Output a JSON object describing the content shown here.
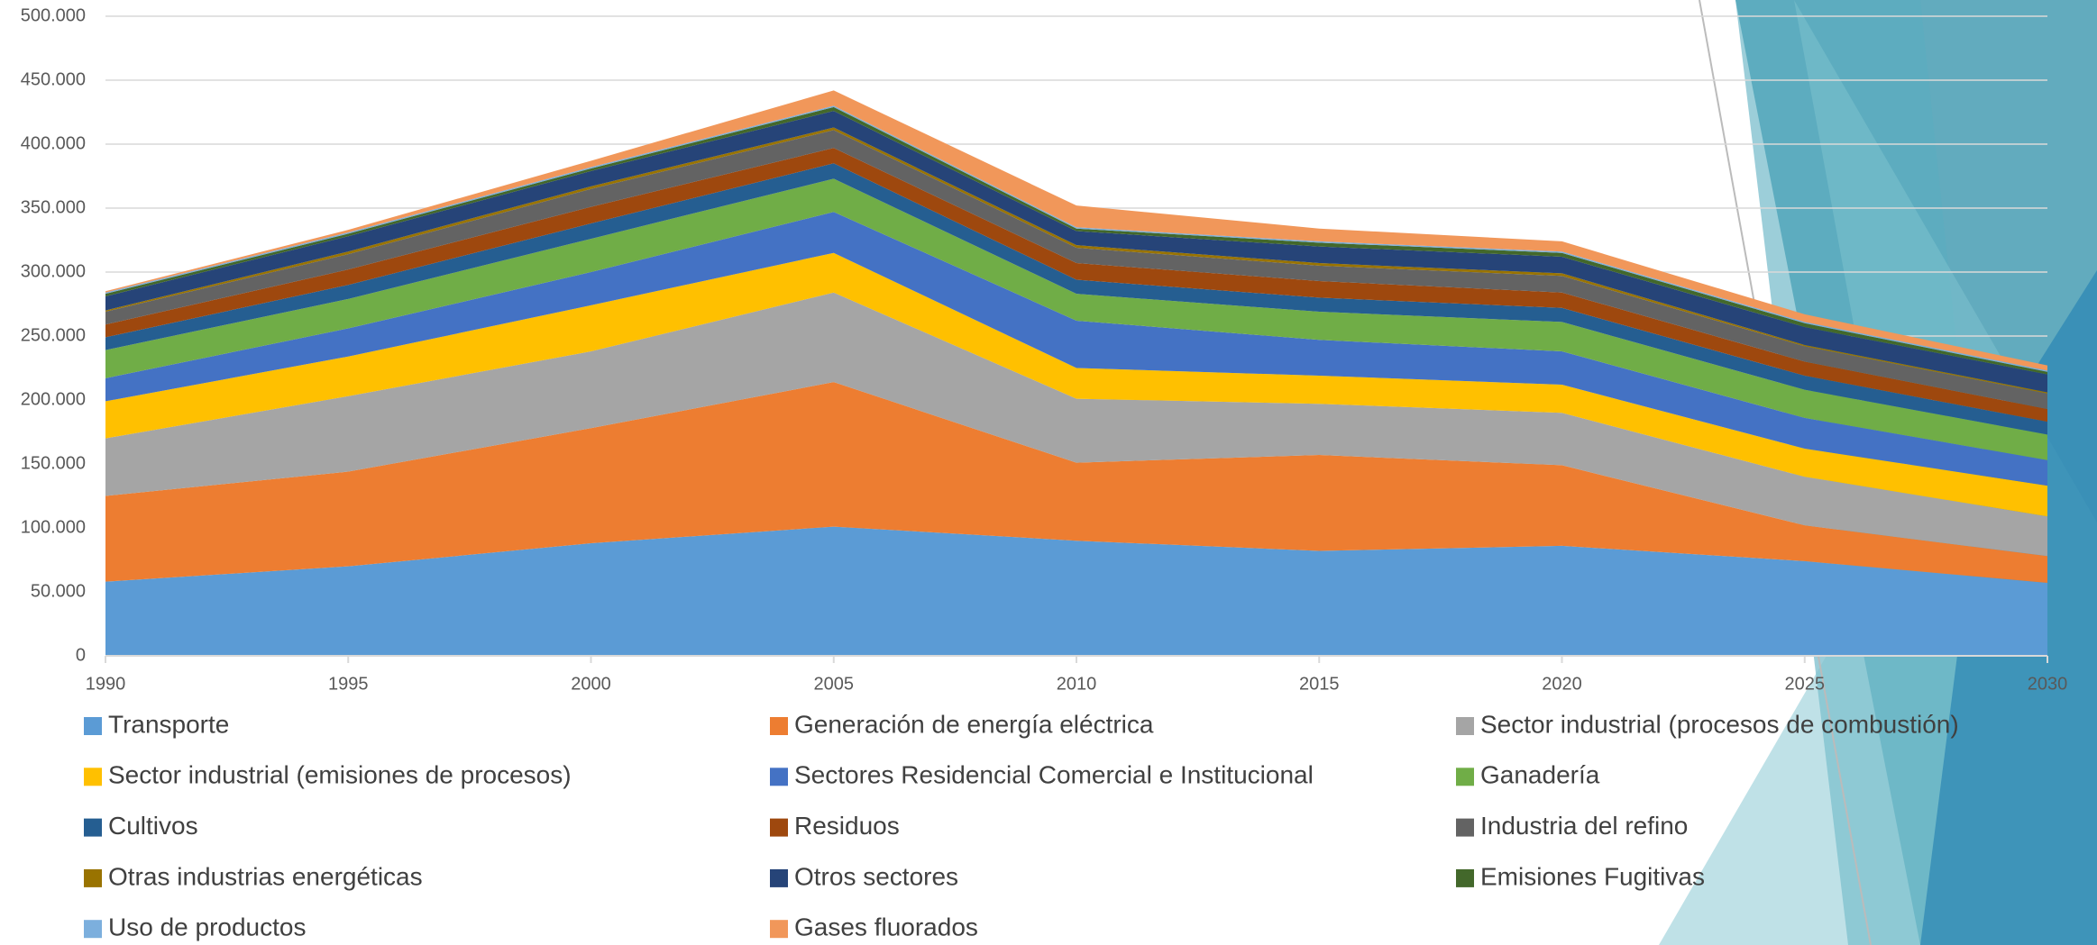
{
  "chart_data": {
    "type": "stacked-area",
    "x": [
      1990,
      1995,
      2000,
      2005,
      2010,
      2015,
      2020,
      2025,
      2030
    ],
    "xlim": [
      1990,
      2030
    ],
    "xticks": [
      1990,
      1995,
      2000,
      2005,
      2010,
      2015,
      2020,
      2025,
      2030
    ],
    "ylim": [
      0,
      500000
    ],
    "yticks": [
      0,
      {
        "value": 50000,
        "label": "50.000"
      },
      {
        "value": 100000,
        "label": "100.000"
      },
      {
        "value": 150000,
        "label": "150.000"
      },
      {
        "value": 200000,
        "label": "200.000"
      },
      {
        "value": 250000,
        "label": "250.000"
      },
      {
        "value": 300000,
        "label": "300.000"
      },
      {
        "value": 350000,
        "label": "350.000"
      },
      {
        "value": 400000,
        "label": "400.000"
      },
      {
        "value": 450000,
        "label": "450.000"
      },
      {
        "value": 500000,
        "label": "500.000"
      }
    ],
    "grid": true,
    "series": [
      {
        "name": "Transporte",
        "color": "#5b9bd5",
        "values": [
          58000,
          70000,
          88000,
          101000,
          90000,
          82000,
          86000,
          74000,
          57000
        ]
      },
      {
        "name": "Generación de energía eléctrica",
        "color": "#ed7d31",
        "values": [
          67000,
          74000,
          90000,
          113000,
          61000,
          75000,
          63000,
          28000,
          21000
        ]
      },
      {
        "name": "Sector industrial (procesos de combustión)",
        "color": "#a5a5a5",
        "values": [
          45000,
          59000,
          60000,
          70000,
          50000,
          40000,
          41000,
          38000,
          31000
        ]
      },
      {
        "name": "Sector industrial (emisiones de procesos)",
        "color": "#ffc000",
        "values": [
          29000,
          31000,
          36000,
          31000,
          24000,
          22000,
          22000,
          22000,
          24000
        ]
      },
      {
        "name": "Sectores Residencial Comercial e Institucional",
        "color": "#4472c4",
        "values": [
          18000,
          22000,
          26000,
          32000,
          37000,
          28000,
          26000,
          24000,
          20000
        ]
      },
      {
        "name": "Ganadería",
        "color": "#70ad47",
        "values": [
          22000,
          23000,
          26000,
          26000,
          21000,
          22000,
          23000,
          22000,
          20000
        ]
      },
      {
        "name": "Cultivos",
        "color": "#255e91",
        "values": [
          10000,
          11000,
          12000,
          12000,
          11000,
          11000,
          11000,
          11000,
          10000
        ]
      },
      {
        "name": "Residuos",
        "color": "#9e480e",
        "values": [
          10000,
          12000,
          13000,
          12000,
          13000,
          13000,
          12000,
          11000,
          10000
        ]
      },
      {
        "name": "Industria del refino",
        "color": "#636363",
        "values": [
          10000,
          12000,
          14000,
          14000,
          12000,
          12000,
          13000,
          12000,
          12000
        ]
      },
      {
        "name": "Otras industrias energéticas",
        "color": "#997300",
        "values": [
          1000,
          2000,
          2000,
          2000,
          2000,
          2000,
          2000,
          1000,
          1000
        ]
      },
      {
        "name": "Otros sectores",
        "color": "#264478",
        "values": [
          11000,
          12000,
          12000,
          13000,
          11000,
          13000,
          13000,
          14000,
          14000
        ]
      },
      {
        "name": "Emisiones Fugitivas",
        "color": "#43682b",
        "values": [
          2000,
          2000,
          2000,
          3000,
          2000,
          3000,
          3000,
          3000,
          2000
        ]
      },
      {
        "name": "Uso de productos",
        "color": "#7cafdd",
        "values": [
          1000,
          1000,
          1000,
          1000,
          1000,
          1000,
          1000,
          1000,
          1000
        ]
      },
      {
        "name": "Gases fluorados",
        "color": "#f1975a",
        "values": [
          1000,
          2000,
          5000,
          12000,
          17000,
          10000,
          8000,
          6000,
          4000
        ]
      }
    ]
  }
}
